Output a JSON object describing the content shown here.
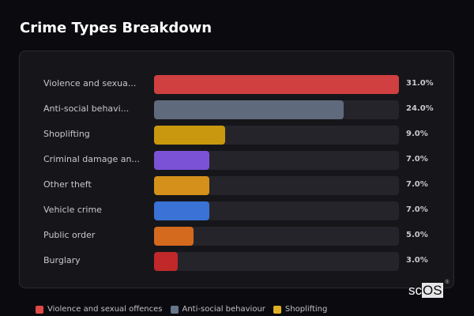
{
  "header": {
    "title": "Crime Types Breakdown"
  },
  "chart_data": {
    "type": "bar",
    "orientation": "horizontal",
    "title": "Crime Types Breakdown",
    "categories": [
      "Violence and sexual offences",
      "Anti-social behaviour",
      "Shoplifting",
      "Criminal damage and arson",
      "Other theft",
      "Vehicle crime",
      "Public order",
      "Burglary"
    ],
    "display_labels": [
      "Violence and sexua...",
      "Anti-social behavi...",
      "Shoplifting",
      "Criminal damage an...",
      "Other theft",
      "Vehicle crime",
      "Public order",
      "Burglary"
    ],
    "values": [
      31.0,
      24.0,
      9.0,
      7.0,
      7.0,
      7.0,
      5.0,
      3.0
    ],
    "value_labels": [
      "31.0%",
      "24.0%",
      "9.0%",
      "7.0%",
      "7.0%",
      "7.0%",
      "5.0%",
      "3.0%"
    ],
    "colors": [
      "#d04040",
      "#5f6b7c",
      "#c9980f",
      "#7b52d6",
      "#d4901a",
      "#3a72d6",
      "#d46a1e",
      "#c0282a"
    ],
    "xlim": [
      0,
      31
    ],
    "legend": [
      "Violence and sexual offences",
      "Anti-social behaviour",
      "Shoplifting"
    ],
    "legend_position": "bottom"
  },
  "legend": {
    "items": [
      {
        "label": "Violence and sexual offences",
        "color": "#e04848"
      },
      {
        "label": "Anti-social behaviour",
        "color": "#66758a"
      },
      {
        "label": "Shoplifting",
        "color": "#e0b020"
      }
    ]
  },
  "logo": {
    "text_sc": "sc",
    "text_os": "OS",
    "reg": "®"
  }
}
